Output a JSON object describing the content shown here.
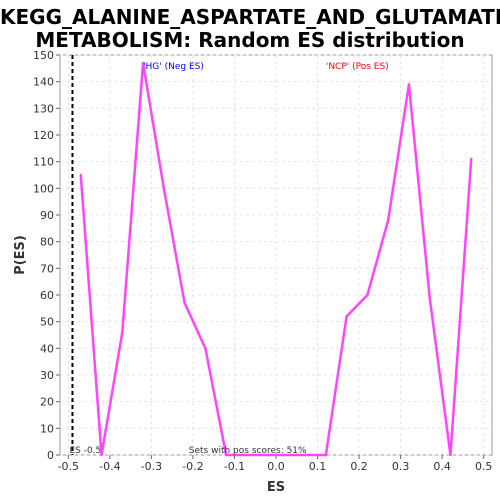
{
  "chart_data": {
    "type": "line",
    "title_line1": "KEGG_ALANINE_ASPARTATE_AND_GLUTAMATE_",
    "title_line2": "METABOLISM: Random ES distribution",
    "xlabel": "ES",
    "ylabel": "P(ES)",
    "xlim": [
      -0.52,
      0.52
    ],
    "ylim": [
      0,
      150
    ],
    "xticks": [
      -0.5,
      -0.4,
      -0.3,
      -0.2,
      -0.1,
      0.0,
      0.1,
      0.2,
      0.3,
      0.4,
      0.5
    ],
    "xtick_labels": [
      "-0.5",
      "-0.4",
      "-0.3",
      "-0.2",
      "-0.1",
      "0.0",
      "0.1",
      "0.2",
      "0.3",
      "0.4",
      "0.5"
    ],
    "yticks": [
      0,
      10,
      20,
      30,
      40,
      50,
      60,
      70,
      80,
      90,
      100,
      110,
      120,
      130,
      140,
      150
    ],
    "grid": true,
    "series": [
      {
        "color": "#ff44ff",
        "x": [
          -0.47,
          -0.42,
          -0.37,
          -0.32,
          -0.27,
          -0.22,
          -0.17,
          -0.12,
          -0.07,
          -0.02,
          0.02,
          0.07,
          0.12,
          0.17,
          0.22,
          0.27,
          0.32,
          0.37,
          0.42,
          0.47
        ],
        "y": [
          105,
          0,
          46,
          147,
          100,
          57,
          40,
          0,
          0,
          0,
          0,
          0,
          0,
          52,
          60,
          88,
          139,
          59,
          0,
          111
        ]
      }
    ],
    "es_line": {
      "x": -0.49,
      "label": "ES -0.5"
    },
    "annotations": {
      "neg_label": "'HG' (Neg ES)",
      "neg_color": "#0000ff",
      "pos_label": "'NCP' (Pos ES)",
      "pos_color": "#ff0000",
      "footer": "Sets with pos scores: 51%"
    }
  }
}
